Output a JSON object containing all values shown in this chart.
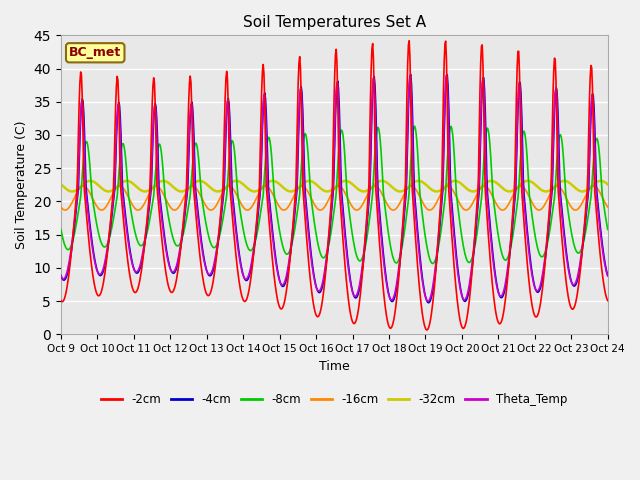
{
  "title": "Soil Temperatures Set A",
  "xlabel": "Time",
  "ylabel": "Soil Temperature (C)",
  "ylim": [
    0,
    45
  ],
  "background_color": "#e8e8e8",
  "fig_background": "#f0f0f0",
  "annotation_text": "BC_met",
  "annotation_box_color": "#ffff99",
  "annotation_box_edge": "#8b6914",
  "series": {
    "cm2": {
      "label": "-2cm",
      "color": "#ff0000",
      "lw": 1.2
    },
    "cm4": {
      "label": "-4cm",
      "color": "#0000cc",
      "lw": 1.2
    },
    "cm8": {
      "label": "-8cm",
      "color": "#00cc00",
      "lw": 1.2
    },
    "cm16": {
      "label": "-16cm",
      "color": "#ff8800",
      "lw": 1.2
    },
    "cm32": {
      "label": "-32cm",
      "color": "#cccc00",
      "lw": 1.8
    },
    "theta": {
      "label": "Theta_Temp",
      "color": "#cc00cc",
      "lw": 1.2
    }
  },
  "x_tick_labels": [
    "Oct 9",
    "Oct 10",
    "Oct 11",
    "Oct 12",
    "Oct 13",
    "Oct 14",
    "Oct 15",
    "Oct 16",
    "Oct 17",
    "Oct 18",
    "Oct 19",
    "Oct 20",
    "Oct 21",
    "Oct 22",
    "Oct 23",
    "Oct 24"
  ],
  "grid_color": "#ffffff",
  "yticks": [
    0,
    5,
    10,
    15,
    20,
    25,
    30,
    35,
    40,
    45
  ]
}
